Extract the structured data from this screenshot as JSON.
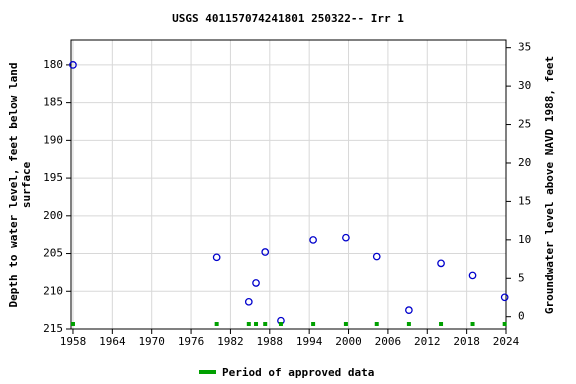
{
  "chart_data": {
    "type": "scatter",
    "title": "USGS 401157074241801 250322-- Irr 1",
    "ylabel": [
      "Depth to water level, feet below land",
      "surface"
    ],
    "y2label": "Groundwater level above NAVD 1988, feet",
    "x": [
      1958.0,
      1979.9,
      1984.8,
      1985.9,
      1987.3,
      1989.7,
      1994.6,
      1999.6,
      2004.3,
      2009.2,
      2014.1,
      2018.9,
      2023.8
    ],
    "values": [
      180.0,
      205.5,
      211.4,
      208.9,
      204.8,
      213.9,
      203.2,
      202.9,
      205.4,
      212.5,
      206.3,
      207.9,
      210.8
    ],
    "color": "#0000cc",
    "approved": {
      "name": "Period of approved data",
      "color": "#00a000",
      "x": [
        1958.0,
        1979.9,
        1984.8,
        1985.9,
        1987.3,
        1989.7,
        1994.6,
        1999.6,
        2004.3,
        2009.2,
        2014.1,
        2018.9,
        2023.8
      ]
    },
    "xlim": [
      1957.7,
      2024
    ],
    "xticks": [
      1958,
      1964,
      1970,
      1976,
      1982,
      1988,
      1994,
      2000,
      2006,
      2012,
      2018,
      2024
    ],
    "ylim": [
      215,
      176.7
    ],
    "yticks": [
      180,
      185,
      190,
      195,
      200,
      205,
      210,
      215
    ],
    "y2lim": [
      -1.6,
      36
    ],
    "y2ticks": [
      0,
      5,
      10,
      15,
      20,
      25,
      30,
      35
    ],
    "grid": true
  }
}
